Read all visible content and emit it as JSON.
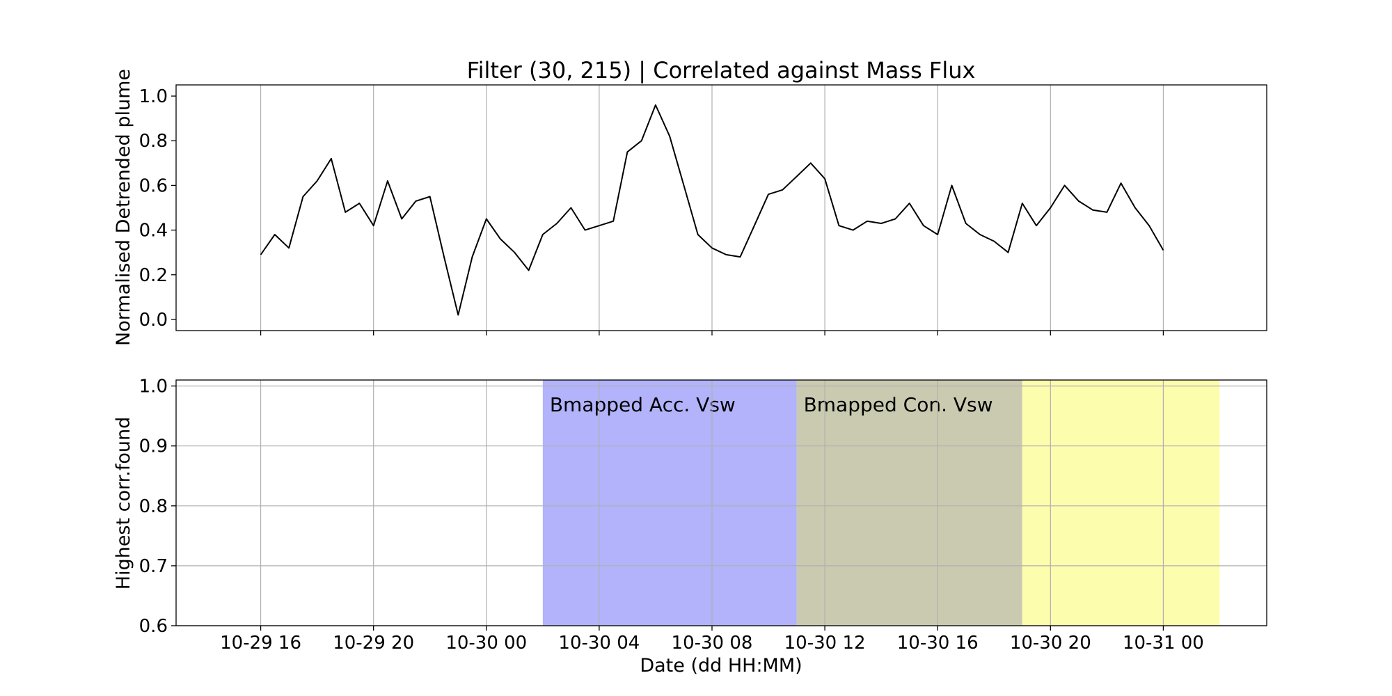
{
  "chart_data": [
    {
      "type": "line",
      "title": "Filter (30, 215) | Correlated against Mass Flux",
      "ylabel": "Normalised Detrended plume",
      "xlabel": "",
      "x_axis": "datetime",
      "xlim": [
        "2000-10-29 13:00",
        "2000-10-31 03:40"
      ],
      "ylim": [
        -0.05,
        1.05
      ],
      "yticks": [
        0.0,
        0.2,
        0.4,
        0.6,
        0.8,
        1.0
      ],
      "ytick_labels": [
        "0.0",
        "0.2",
        "0.4",
        "0.6",
        "0.8",
        "1.0"
      ],
      "xtick_labels": [],
      "grid": "x",
      "series": [
        {
          "color": "#000000",
          "x": [
            "2000-10-29 16:00",
            "2000-10-29 16:30",
            "2000-10-29 17:00",
            "2000-10-29 17:30",
            "2000-10-29 18:00",
            "2000-10-29 18:30",
            "2000-10-29 19:00",
            "2000-10-29 19:30",
            "2000-10-29 20:00",
            "2000-10-29 20:30",
            "2000-10-29 21:00",
            "2000-10-29 21:30",
            "2000-10-29 22:00",
            "2000-10-29 22:30",
            "2000-10-29 23:00",
            "2000-10-29 23:30",
            "2000-10-30 00:00",
            "2000-10-30 00:30",
            "2000-10-30 01:00",
            "2000-10-30 01:30",
            "2000-10-30 02:00",
            "2000-10-30 02:30",
            "2000-10-30 03:00",
            "2000-10-30 03:30",
            "2000-10-30 04:00",
            "2000-10-30 04:30",
            "2000-10-30 05:00",
            "2000-10-30 05:30",
            "2000-10-30 06:00",
            "2000-10-30 06:30",
            "2000-10-30 07:00",
            "2000-10-30 07:30",
            "2000-10-30 08:00",
            "2000-10-30 08:30",
            "2000-10-30 09:00",
            "2000-10-30 09:30",
            "2000-10-30 10:00",
            "2000-10-30 10:30",
            "2000-10-30 11:00",
            "2000-10-30 11:30",
            "2000-10-30 12:00",
            "2000-10-30 12:30",
            "2000-10-30 13:00",
            "2000-10-30 13:30",
            "2000-10-30 14:00",
            "2000-10-30 14:30",
            "2000-10-30 15:00",
            "2000-10-30 15:30",
            "2000-10-30 16:00",
            "2000-10-30 16:30",
            "2000-10-30 17:00",
            "2000-10-30 17:30",
            "2000-10-30 18:00",
            "2000-10-30 18:30",
            "2000-10-30 19:00",
            "2000-10-30 19:30",
            "2000-10-30 20:00",
            "2000-10-30 20:30",
            "2000-10-30 21:00",
            "2000-10-30 21:30",
            "2000-10-30 22:00",
            "2000-10-30 22:30",
            "2000-10-30 23:00",
            "2000-10-30 23:30",
            "2000-10-31 00:00"
          ],
          "y": [
            0.29,
            0.38,
            0.32,
            0.55,
            0.62,
            0.72,
            0.48,
            0.52,
            0.42,
            0.62,
            0.45,
            0.53,
            0.55,
            0.28,
            0.02,
            0.28,
            0.45,
            0.36,
            0.3,
            0.22,
            0.38,
            0.43,
            0.5,
            0.4,
            0.42,
            0.44,
            0.75,
            0.8,
            0.96,
            0.82,
            0.6,
            0.38,
            0.32,
            0.29,
            0.28,
            0.42,
            0.56,
            0.58,
            0.64,
            0.7,
            0.63,
            0.42,
            0.4,
            0.44,
            0.43,
            0.45,
            0.52,
            0.42,
            0.38,
            0.6,
            0.43,
            0.38,
            0.35,
            0.3,
            0.52,
            0.42,
            0.5,
            0.6,
            0.53,
            0.49,
            0.48,
            0.61,
            0.5,
            0.42,
            0.31
          ]
        }
      ]
    },
    {
      "type": "area",
      "ylabel": "Highest corr.found",
      "xlabel": "Date (dd HH:MM)",
      "x_axis": "datetime",
      "xlim": [
        "2000-10-29 13:00",
        "2000-10-31 03:40"
      ],
      "ylim": [
        0.6,
        1.01
      ],
      "yticks": [
        0.6,
        0.7,
        0.8,
        0.9,
        1.0
      ],
      "ytick_labels": [
        "0.6",
        "0.7",
        "0.8",
        "0.9",
        "1.0"
      ],
      "xtick_labels": [
        "10-29 16",
        "10-29 20",
        "10-30 00",
        "10-30 04",
        "10-30 08",
        "10-30 12",
        "10-30 16",
        "10-30 20",
        "10-31 00"
      ],
      "xticks": [
        "2000-10-29 16:00",
        "2000-10-29 20:00",
        "2000-10-30 00:00",
        "2000-10-30 04:00",
        "2000-10-30 08:00",
        "2000-10-30 12:00",
        "2000-10-30 16:00",
        "2000-10-30 20:00",
        "2000-10-31 00:00"
      ],
      "grid": "both",
      "bands": [
        {
          "label": "Bmapped Acc. Vsw",
          "start": "2000-10-30 02:00",
          "end": "2000-10-30 11:00",
          "color": "#b2b3fb"
        },
        {
          "label": "Bmapped Con. Vsw",
          "start": "2000-10-30 11:00",
          "end": "2000-10-30 19:00",
          "color": "#cacab1"
        },
        {
          "label": "",
          "start": "2000-10-30 19:00",
          "end": "2000-10-31 02:00",
          "color": "#fdfdae"
        }
      ]
    }
  ]
}
